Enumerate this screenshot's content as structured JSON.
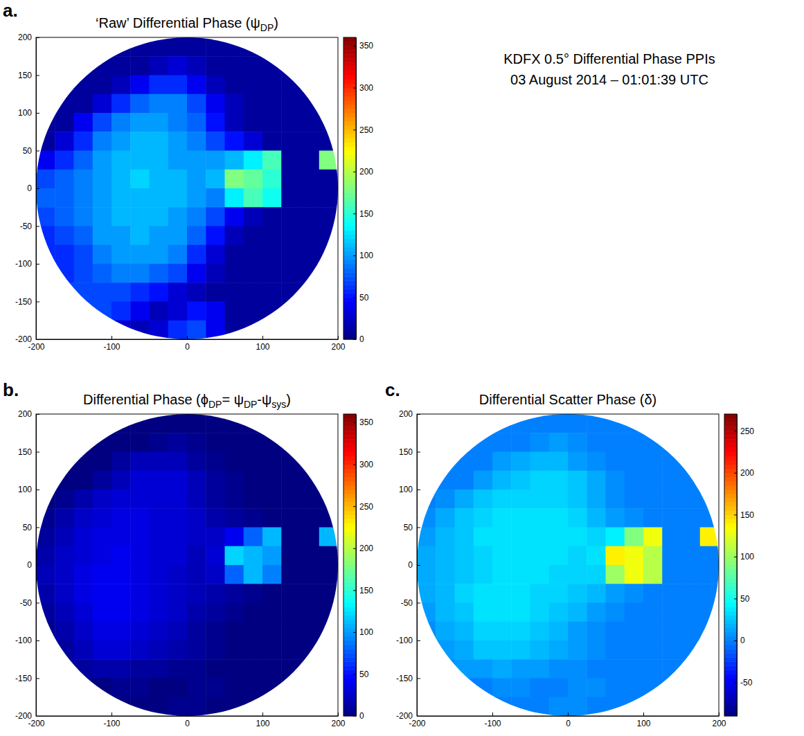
{
  "header": {
    "lines": [
      "KDFX 0.5° Differential Phase PPIs",
      "03 August 2014 – 01:01:39 UTC"
    ]
  },
  "chart_data": [
    {
      "type": "heatmap",
      "label": "a.",
      "title": [
        "‘Raw’ Differential Phase (ψ",
        "DP",
        ")"
      ],
      "xlim": [
        -200,
        200
      ],
      "ylim": [
        -200,
        200
      ],
      "xticks": [
        -200,
        -100,
        0,
        100,
        200
      ],
      "yticks": [
        -200,
        -150,
        -100,
        -50,
        0,
        50,
        100,
        150,
        200
      ],
      "colorbar_range": [
        0,
        360
      ],
      "colorbar_ticks": [
        0,
        50,
        100,
        150,
        200,
        250,
        300,
        350
      ],
      "cells": [
        [
          null,
          null,
          null,
          null,
          10,
          10,
          10,
          10,
          10,
          10,
          10,
          10,
          null,
          null,
          null,
          null
        ],
        [
          null,
          null,
          10,
          10,
          10,
          10,
          20,
          30,
          20,
          10,
          10,
          10,
          10,
          10,
          null,
          null
        ],
        [
          null,
          10,
          10,
          10,
          20,
          40,
          60,
          60,
          40,
          20,
          10,
          10,
          10,
          10,
          10,
          null
        ],
        [
          null,
          10,
          10,
          30,
          60,
          80,
          90,
          90,
          70,
          40,
          20,
          10,
          10,
          10,
          10,
          null
        ],
        [
          10,
          10,
          40,
          70,
          90,
          100,
          100,
          90,
          80,
          50,
          20,
          10,
          10,
          10,
          10,
          10
        ],
        [
          10,
          30,
          60,
          90,
          100,
          110,
          110,
          100,
          90,
          70,
          50,
          30,
          10,
          10,
          10,
          10
        ],
        [
          40,
          60,
          80,
          100,
          110,
          110,
          110,
          100,
          100,
          100,
          110,
          130,
          160,
          10,
          10,
          180
        ],
        [
          70,
          80,
          90,
          100,
          110,
          120,
          110,
          110,
          100,
          110,
          180,
          170,
          150,
          10,
          10,
          10
        ],
        [
          80,
          80,
          90,
          100,
          110,
          110,
          110,
          110,
          100,
          90,
          130,
          160,
          140,
          10,
          10,
          10
        ],
        [
          70,
          80,
          90,
          100,
          110,
          110,
          110,
          100,
          90,
          70,
          40,
          20,
          10,
          10,
          10,
          10
        ],
        [
          60,
          70,
          80,
          100,
          100,
          110,
          100,
          100,
          80,
          50,
          20,
          10,
          10,
          10,
          10,
          10
        ],
        [
          60,
          60,
          70,
          90,
          100,
          100,
          100,
          90,
          60,
          30,
          10,
          10,
          10,
          10,
          10,
          10
        ],
        [
          null,
          60,
          70,
          80,
          90,
          90,
          80,
          70,
          40,
          20,
          10,
          10,
          10,
          10,
          10,
          null
        ],
        [
          null,
          70,
          70,
          70,
          70,
          60,
          50,
          30,
          20,
          10,
          10,
          10,
          10,
          10,
          10,
          null
        ],
        [
          null,
          null,
          70,
          70,
          60,
          40,
          20,
          30,
          50,
          40,
          10,
          10,
          10,
          10,
          null,
          null
        ],
        [
          null,
          null,
          null,
          null,
          30,
          20,
          30,
          60,
          70,
          40,
          10,
          10,
          null,
          null,
          null,
          null
        ]
      ]
    },
    {
      "type": "heatmap",
      "label": "b.",
      "title": [
        "Differential Phase (ϕ",
        "DP",
        "= ψ",
        "DP",
        "-ψ",
        "sys",
        ")"
      ],
      "xlim": [
        -200,
        200
      ],
      "ylim": [
        -200,
        200
      ],
      "xticks": [
        -200,
        -100,
        0,
        100,
        200
      ],
      "yticks": [
        -200,
        -150,
        -100,
        -50,
        0,
        50,
        100,
        150,
        200
      ],
      "colorbar_range": [
        0,
        360
      ],
      "colorbar_ticks": [
        0,
        50,
        100,
        150,
        200,
        250,
        300,
        350
      ],
      "cells": [
        [
          null,
          null,
          null,
          null,
          0,
          0,
          0,
          0,
          0,
          0,
          0,
          0,
          null,
          null,
          null,
          null
        ],
        [
          null,
          null,
          0,
          0,
          0,
          0,
          5,
          10,
          5,
          0,
          0,
          0,
          0,
          0,
          null,
          null
        ],
        [
          null,
          0,
          0,
          0,
          10,
          20,
          20,
          20,
          10,
          5,
          0,
          0,
          0,
          0,
          0,
          null
        ],
        [
          null,
          0,
          0,
          10,
          20,
          30,
          30,
          30,
          20,
          10,
          5,
          0,
          0,
          0,
          0,
          null
        ],
        [
          0,
          5,
          15,
          25,
          30,
          30,
          30,
          30,
          20,
          10,
          5,
          0,
          0,
          0,
          0,
          0
        ],
        [
          5,
          15,
          25,
          30,
          35,
          35,
          30,
          30,
          25,
          15,
          10,
          5,
          0,
          0,
          0,
          0
        ],
        [
          10,
          20,
          30,
          35,
          35,
          35,
          30,
          30,
          25,
          25,
          40,
          80,
          110,
          0,
          0,
          110
        ],
        [
          15,
          25,
          30,
          35,
          40,
          35,
          30,
          30,
          20,
          30,
          120,
          110,
          100,
          0,
          0,
          0
        ],
        [
          20,
          25,
          35,
          40,
          40,
          35,
          30,
          25,
          20,
          25,
          80,
          110,
          90,
          0,
          0,
          0
        ],
        [
          15,
          25,
          35,
          40,
          40,
          35,
          30,
          25,
          20,
          15,
          10,
          5,
          0,
          0,
          0,
          0
        ],
        [
          10,
          20,
          30,
          40,
          40,
          35,
          30,
          25,
          15,
          10,
          5,
          0,
          0,
          0,
          0,
          0
        ],
        [
          5,
          15,
          25,
          35,
          35,
          30,
          25,
          20,
          10,
          5,
          0,
          0,
          0,
          0,
          0,
          0
        ],
        [
          null,
          10,
          20,
          30,
          30,
          25,
          20,
          15,
          10,
          5,
          0,
          0,
          0,
          0,
          0,
          null
        ],
        [
          null,
          5,
          10,
          15,
          15,
          10,
          10,
          5,
          5,
          0,
          0,
          0,
          0,
          0,
          0,
          null
        ],
        [
          null,
          null,
          0,
          0,
          5,
          5,
          0,
          0,
          5,
          5,
          0,
          0,
          0,
          0,
          null,
          null
        ],
        [
          null,
          null,
          null,
          null,
          0,
          0,
          0,
          5,
          5,
          0,
          0,
          0,
          null,
          null,
          null,
          null
        ]
      ]
    },
    {
      "type": "heatmap",
      "label": "c.",
      "title": [
        "Differential Scatter Phase (δ)"
      ],
      "xlim": [
        -200,
        200
      ],
      "ylim": [
        -200,
        200
      ],
      "xticks": [
        -200,
        -100,
        0,
        100,
        200
      ],
      "yticks": [
        -200,
        -150,
        -100,
        -50,
        0,
        50,
        100,
        150,
        200
      ],
      "colorbar_range": [
        -90,
        270
      ],
      "colorbar_ticks": [
        -50,
        0,
        50,
        100,
        150,
        200,
        250
      ],
      "cells": [
        [
          null,
          null,
          null,
          null,
          0,
          0,
          0,
          0,
          0,
          0,
          0,
          0,
          null,
          null,
          null,
          null
        ],
        [
          null,
          null,
          0,
          0,
          0,
          0,
          5,
          10,
          5,
          0,
          0,
          0,
          0,
          0,
          null,
          null
        ],
        [
          null,
          0,
          0,
          0,
          10,
          15,
          20,
          20,
          10,
          5,
          0,
          0,
          0,
          0,
          0,
          null
        ],
        [
          null,
          0,
          0,
          10,
          20,
          25,
          30,
          30,
          25,
          15,
          5,
          0,
          0,
          0,
          0,
          null
        ],
        [
          0,
          5,
          15,
          25,
          30,
          30,
          30,
          30,
          25,
          15,
          5,
          0,
          0,
          0,
          0,
          0
        ],
        [
          5,
          15,
          25,
          30,
          35,
          35,
          35,
          35,
          30,
          20,
          10,
          5,
          0,
          0,
          0,
          0
        ],
        [
          10,
          20,
          25,
          35,
          35,
          35,
          35,
          35,
          35,
          30,
          40,
          90,
          130,
          0,
          0,
          140
        ],
        [
          15,
          20,
          25,
          30,
          35,
          35,
          35,
          35,
          30,
          35,
          140,
          130,
          110,
          0,
          0,
          0
        ],
        [
          15,
          20,
          25,
          30,
          35,
          35,
          35,
          30,
          30,
          30,
          100,
          130,
          110,
          0,
          0,
          0
        ],
        [
          15,
          20,
          30,
          35,
          35,
          35,
          30,
          30,
          25,
          20,
          10,
          5,
          0,
          0,
          0,
          0
        ],
        [
          10,
          20,
          25,
          35,
          35,
          35,
          30,
          25,
          20,
          10,
          5,
          0,
          0,
          0,
          0,
          0
        ],
        [
          5,
          15,
          20,
          30,
          30,
          30,
          25,
          20,
          10,
          5,
          0,
          0,
          0,
          0,
          0,
          0
        ],
        [
          null,
          10,
          15,
          25,
          25,
          25,
          20,
          15,
          10,
          5,
          0,
          0,
          0,
          0,
          0,
          null
        ],
        [
          null,
          5,
          10,
          10,
          15,
          10,
          10,
          5,
          5,
          0,
          0,
          0,
          0,
          0,
          0,
          null
        ],
        [
          null,
          null,
          0,
          0,
          5,
          5,
          0,
          0,
          5,
          5,
          0,
          0,
          0,
          0,
          null,
          null
        ],
        [
          null,
          null,
          null,
          null,
          0,
          0,
          0,
          5,
          5,
          0,
          0,
          0,
          null,
          null,
          null,
          null
        ]
      ]
    }
  ]
}
